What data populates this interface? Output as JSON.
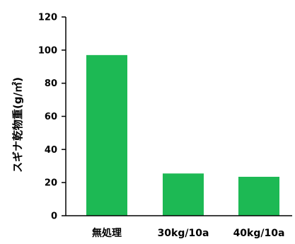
{
  "chart_data": {
    "type": "bar",
    "title": "",
    "xlabel": "",
    "ylabel": "スギナ乾物重(g/㎡)",
    "categories": [
      "無処理",
      "30kg/10a",
      "40kg/10a"
    ],
    "values": [
      97,
      25.5,
      23.5
    ],
    "ylim": [
      0,
      120
    ],
    "yticks": [
      0,
      20,
      40,
      60,
      80,
      100,
      120
    ],
    "grid": false,
    "legend": "none",
    "bar_color": "#1db954",
    "axis_color": "#000000"
  }
}
